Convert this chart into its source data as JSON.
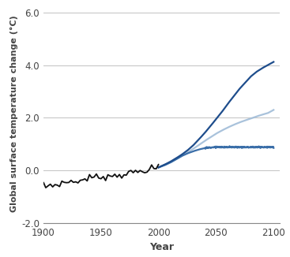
{
  "xlabel": "Year",
  "ylabel": "Global surface temperature change (°C)",
  "xlim": [
    1900,
    2105
  ],
  "ylim": [
    -2.0,
    6.3
  ],
  "yticks": [
    -2.0,
    0.0,
    2.0,
    4.0,
    6.0
  ],
  "ytick_labels": [
    "-2.0",
    "0.0",
    "2.0",
    "4.0",
    "6.0"
  ],
  "xticks": [
    1900,
    1950,
    2000,
    2050,
    2100
  ],
  "historical": {
    "years": [
      1900,
      1902,
      1904,
      1906,
      1908,
      1910,
      1912,
      1914,
      1916,
      1918,
      1920,
      1922,
      1924,
      1926,
      1928,
      1930,
      1932,
      1934,
      1936,
      1938,
      1940,
      1942,
      1944,
      1946,
      1948,
      1950,
      1952,
      1954,
      1956,
      1958,
      1960,
      1962,
      1964,
      1966,
      1968,
      1970,
      1972,
      1974,
      1976,
      1978,
      1980,
      1982,
      1984,
      1986,
      1988,
      1990,
      1992,
      1994,
      1996,
      1998,
      2000
    ],
    "values": [
      -0.55,
      -0.62,
      -0.58,
      -0.54,
      -0.57,
      -0.53,
      -0.55,
      -0.5,
      -0.46,
      -0.48,
      -0.42,
      -0.44,
      -0.4,
      -0.43,
      -0.41,
      -0.38,
      -0.4,
      -0.36,
      -0.33,
      -0.3,
      -0.25,
      -0.28,
      -0.22,
      -0.25,
      -0.28,
      -0.22,
      -0.2,
      -0.24,
      -0.22,
      -0.18,
      -0.18,
      -0.2,
      -0.15,
      -0.18,
      -0.16,
      -0.12,
      -0.1,
      -0.12,
      -0.1,
      -0.06,
      -0.04,
      -0.06,
      -0.03,
      0.0,
      0.02,
      0.05,
      0.02,
      0.08,
      0.06,
      0.1,
      0.12
    ],
    "color": "#111111",
    "linewidth": 1.3
  },
  "high_scenario": {
    "years": [
      2000,
      2005,
      2010,
      2015,
      2020,
      2025,
      2030,
      2035,
      2040,
      2045,
      2050,
      2055,
      2060,
      2065,
      2070,
      2075,
      2080,
      2085,
      2090,
      2095,
      2100
    ],
    "values": [
      0.12,
      0.22,
      0.33,
      0.46,
      0.6,
      0.76,
      0.95,
      1.18,
      1.42,
      1.68,
      1.95,
      2.22,
      2.52,
      2.8,
      3.08,
      3.32,
      3.56,
      3.74,
      3.88,
      4.0,
      4.12
    ],
    "color": "#1e4d8c",
    "linewidth": 1.6
  },
  "mid_scenario": {
    "years": [
      2000,
      2005,
      2010,
      2015,
      2020,
      2025,
      2030,
      2035,
      2040,
      2045,
      2050,
      2055,
      2060,
      2065,
      2070,
      2075,
      2080,
      2085,
      2090,
      2095,
      2100
    ],
    "values": [
      0.12,
      0.2,
      0.3,
      0.42,
      0.55,
      0.68,
      0.82,
      0.97,
      1.12,
      1.26,
      1.4,
      1.52,
      1.63,
      1.73,
      1.82,
      1.9,
      1.97,
      2.05,
      2.12,
      2.18,
      2.3
    ],
    "color": "#a0bcd8",
    "linewidth": 1.6
  },
  "low_scenario": {
    "years": [
      2000,
      2005,
      2010,
      2015,
      2020,
      2025,
      2030,
      2035,
      2040,
      2045,
      2050,
      2055,
      2060,
      2065,
      2070,
      2075,
      2080,
      2085,
      2090,
      2095,
      2100
    ],
    "values": [
      0.12,
      0.2,
      0.3,
      0.42,
      0.55,
      0.65,
      0.73,
      0.8,
      0.85,
      0.88,
      0.89,
      0.89,
      0.89,
      0.89,
      0.89,
      0.89,
      0.89,
      0.89,
      0.89,
      0.89,
      0.89
    ],
    "color": "#3a6ea8",
    "linewidth": 1.6
  },
  "background_color": "#ffffff",
  "grid_color": "#c8c8c8"
}
